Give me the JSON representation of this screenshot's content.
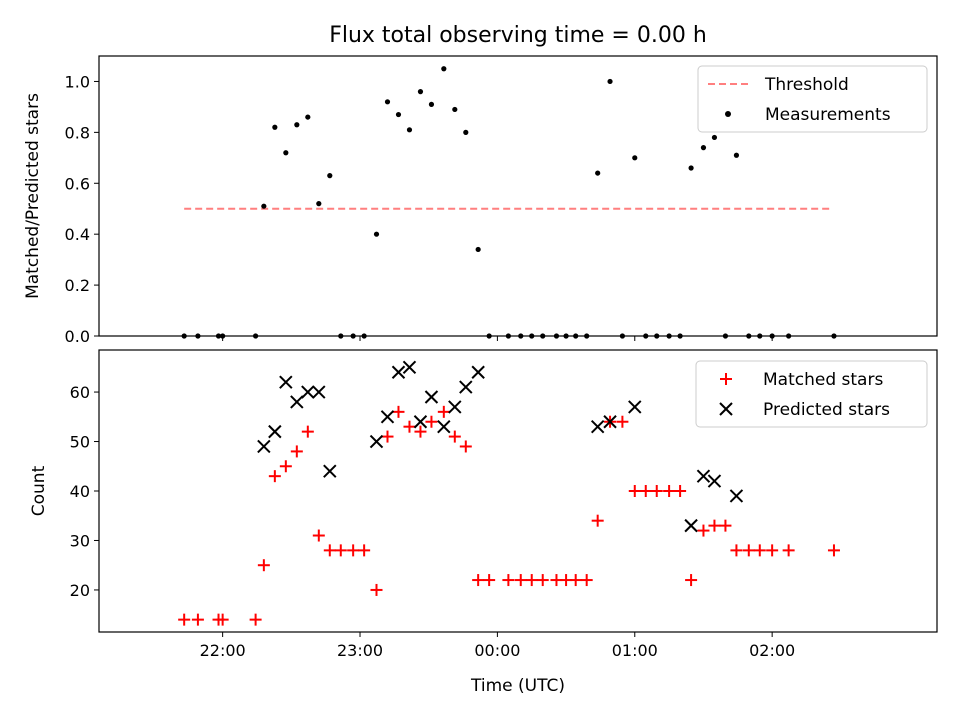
{
  "colors": {
    "threshold": "#ff7f7f",
    "measurement": "#000000",
    "matched": "#ff0000",
    "predicted": "#000000",
    "axes": "#000000"
  },
  "chart_data": [
    {
      "type": "scatter",
      "title": "Flux total observing time = 0.00 h",
      "xlabel": "",
      "ylabel": "Matched/Predicted stars",
      "xlim": [
        -2.9,
        3.2
      ],
      "ylim": [
        0,
        1.1
      ],
      "yticks": [
        0.0,
        0.2,
        0.4,
        0.6,
        0.8,
        1.0
      ],
      "ytick_labels": [
        "0.0",
        "0.2",
        "0.4",
        "0.6",
        "0.8",
        "1.0"
      ],
      "xticks": [
        -2,
        -1,
        0,
        1,
        2
      ],
      "legend_position": "top-right",
      "threshold": {
        "name": "Threshold",
        "y": 0.5,
        "x_range": [
          -2.28,
          2.42
        ]
      },
      "series": [
        {
          "name": "Measurements",
          "marker": "dot",
          "x": [
            -2.28,
            -2.18,
            -2.03,
            -2.0,
            -1.76,
            -1.7,
            -1.62,
            -1.54,
            -1.46,
            -1.38,
            -1.3,
            -1.22,
            -1.14,
            -1.05,
            -0.97,
            -0.88,
            -0.8,
            -0.72,
            -0.64,
            -0.56,
            -0.48,
            -0.39,
            -0.31,
            -0.23,
            -0.14,
            -0.06,
            0.08,
            0.17,
            0.25,
            0.33,
            0.43,
            0.5,
            0.57,
            0.65,
            0.73,
            0.82,
            0.91,
            1.0,
            1.08,
            1.16,
            1.25,
            1.33,
            1.41,
            1.5,
            1.58,
            1.66,
            1.74,
            1.83,
            1.91,
            2.0,
            2.12,
            2.45
          ],
          "y": [
            0,
            0,
            0,
            0,
            0,
            0.51,
            0.82,
            0.72,
            0.83,
            0.86,
            0.52,
            0.63,
            0,
            0,
            0,
            0.4,
            0.92,
            0.87,
            0.81,
            0.96,
            0.91,
            1.05,
            0.89,
            0.8,
            0.34,
            0,
            0,
            0,
            0,
            0,
            0,
            0,
            0,
            0,
            0.64,
            1.0,
            0,
            0.7,
            0,
            0,
            0,
            0,
            0.66,
            0.74,
            0.78,
            0,
            0.71,
            0,
            0,
            0,
            0,
            0
          ]
        }
      ]
    },
    {
      "type": "scatter",
      "title": "",
      "xlabel": "Time (UTC)",
      "ylabel": "Count",
      "xlim": [
        -2.9,
        3.2
      ],
      "ylim": [
        11.5,
        68.5
      ],
      "yticks": [
        20,
        30,
        40,
        50,
        60
      ],
      "ytick_labels": [
        "20",
        "30",
        "40",
        "50",
        "60"
      ],
      "xticks": [
        -2,
        -1,
        0,
        1,
        2
      ],
      "xtick_labels": [
        "22:00",
        "23:00",
        "00:00",
        "01:00",
        "02:00"
      ],
      "legend_position": "top-right",
      "series": [
        {
          "name": "Matched stars",
          "marker": "plus",
          "x": [
            -2.28,
            -2.18,
            -2.03,
            -2.0,
            -1.76,
            -1.7,
            -1.62,
            -1.54,
            -1.46,
            -1.38,
            -1.3,
            -1.22,
            -1.14,
            -1.05,
            -0.97,
            -0.88,
            -0.8,
            -0.72,
            -0.64,
            -0.56,
            -0.48,
            -0.39,
            -0.31,
            -0.23,
            -0.14,
            -0.06,
            0.08,
            0.17,
            0.25,
            0.33,
            0.43,
            0.5,
            0.57,
            0.65,
            0.73,
            0.82,
            0.91,
            1.0,
            1.08,
            1.16,
            1.25,
            1.33,
            1.41,
            1.5,
            1.58,
            1.66,
            1.74,
            1.83,
            1.91,
            2.0,
            2.12,
            2.45
          ],
          "y": [
            14,
            14,
            14,
            14,
            14,
            25,
            43,
            45,
            48,
            52,
            31,
            28,
            28,
            28,
            28,
            20,
            51,
            56,
            53,
            52,
            54,
            56,
            51,
            49,
            22,
            22,
            22,
            22,
            22,
            22,
            22,
            22,
            22,
            22,
            34,
            54,
            54,
            40,
            40,
            40,
            40,
            40,
            22,
            32,
            33,
            33,
            28,
            28,
            28,
            28,
            28,
            28
          ]
        },
        {
          "name": "Predicted stars",
          "marker": "x",
          "x": [
            -1.7,
            -1.62,
            -1.54,
            -1.46,
            -1.38,
            -1.3,
            -1.22,
            -0.88,
            -0.8,
            -0.72,
            -0.64,
            -0.56,
            -0.48,
            -0.39,
            -0.31,
            -0.23,
            -0.14,
            0.73,
            0.82,
            1.0,
            1.41,
            1.5,
            1.58,
            1.74
          ],
          "y": [
            49,
            52,
            62,
            58,
            60,
            60,
            44,
            50,
            55,
            64,
            65,
            54,
            59,
            53,
            57,
            61,
            64,
            53,
            54,
            57,
            33,
            43,
            42,
            39
          ]
        }
      ]
    }
  ]
}
